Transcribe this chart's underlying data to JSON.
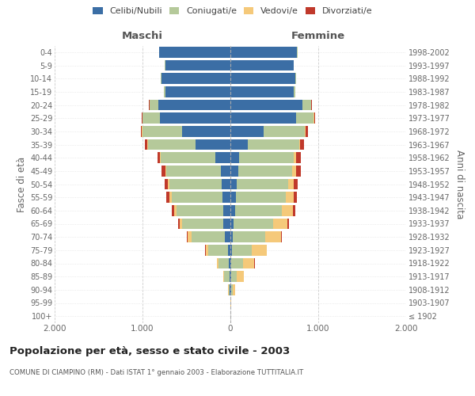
{
  "age_groups": [
    "100+",
    "95-99",
    "90-94",
    "85-89",
    "80-84",
    "75-79",
    "70-74",
    "65-69",
    "60-64",
    "55-59",
    "50-54",
    "45-49",
    "40-44",
    "35-39",
    "30-34",
    "25-29",
    "20-24",
    "15-19",
    "10-14",
    "5-9",
    "0-4"
  ],
  "birth_years": [
    "≤ 1902",
    "1903-1907",
    "1908-1912",
    "1913-1917",
    "1918-1922",
    "1923-1927",
    "1928-1932",
    "1933-1937",
    "1938-1942",
    "1943-1947",
    "1948-1952",
    "1953-1957",
    "1958-1962",
    "1963-1967",
    "1968-1972",
    "1973-1977",
    "1978-1982",
    "1983-1987",
    "1988-1992",
    "1993-1997",
    "1998-2002"
  ],
  "maschi": {
    "celibi": [
      0,
      0,
      5,
      10,
      15,
      30,
      60,
      80,
      85,
      90,
      95,
      110,
      170,
      400,
      550,
      800,
      820,
      740,
      780,
      740,
      810
    ],
    "coniugati": [
      0,
      2,
      15,
      60,
      120,
      220,
      380,
      470,
      530,
      580,
      600,
      620,
      620,
      540,
      450,
      200,
      100,
      20,
      10,
      5,
      5
    ],
    "vedovi": [
      0,
      0,
      5,
      10,
      20,
      30,
      50,
      30,
      25,
      20,
      15,
      10,
      10,
      5,
      5,
      0,
      0,
      0,
      0,
      0,
      0
    ],
    "divorziati": [
      0,
      0,
      0,
      0,
      0,
      5,
      5,
      15,
      25,
      40,
      40,
      40,
      30,
      25,
      15,
      5,
      5,
      0,
      0,
      0,
      0
    ]
  },
  "femmine": {
    "nubili": [
      0,
      0,
      5,
      10,
      10,
      20,
      30,
      40,
      50,
      60,
      70,
      90,
      100,
      200,
      380,
      750,
      820,
      720,
      740,
      720,
      760
    ],
    "coniugate": [
      0,
      2,
      20,
      60,
      130,
      220,
      370,
      450,
      540,
      570,
      590,
      610,
      620,
      580,
      470,
      200,
      100,
      20,
      10,
      5,
      5
    ],
    "vedove": [
      0,
      5,
      30,
      80,
      130,
      170,
      180,
      160,
      120,
      90,
      60,
      50,
      30,
      10,
      10,
      5,
      0,
      0,
      0,
      0,
      0
    ],
    "divorziate": [
      0,
      0,
      0,
      0,
      5,
      5,
      10,
      15,
      30,
      40,
      50,
      50,
      55,
      50,
      20,
      5,
      5,
      0,
      0,
      0,
      0
    ]
  },
  "colors": {
    "celibi": "#3B6EA5",
    "coniugati": "#B5C99A",
    "vedovi": "#F5C97A",
    "divorziati": "#C0392B"
  },
  "xlim": 2000,
  "title": "Popolazione per età, sesso e stato civile - 2003",
  "subtitle": "COMUNE DI CIAMPINO (RM) - Dati ISTAT 1° gennaio 2003 - Elaborazione TUTTITALIA.IT",
  "ylabel_left": "Fasce di età",
  "ylabel_right": "Anni di nascita",
  "xlabel_left": "Maschi",
  "xlabel_right": "Femmine",
  "background_color": "#ffffff",
  "grid_color": "#cccccc"
}
